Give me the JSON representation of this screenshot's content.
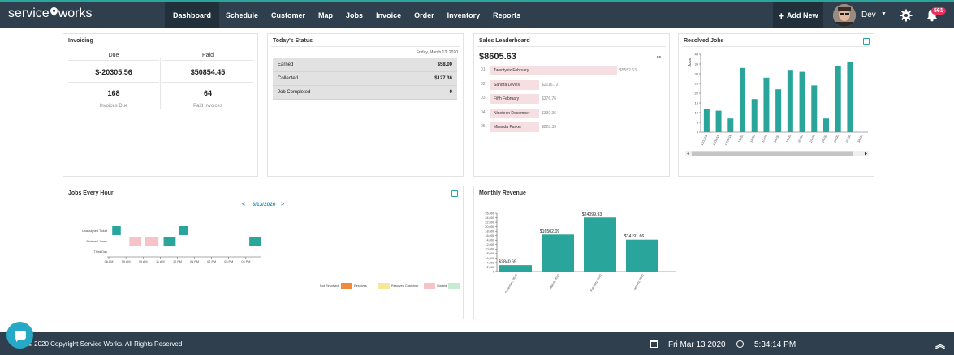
{
  "brand": {
    "name_left": "service",
    "name_right": "works"
  },
  "nav": {
    "items": [
      {
        "label": "Dashboard",
        "active": true
      },
      {
        "label": "Schedule"
      },
      {
        "label": "Customer"
      },
      {
        "label": "Map"
      },
      {
        "label": "Jobs"
      },
      {
        "label": "Invoice"
      },
      {
        "label": "Order"
      },
      {
        "label": "Inventory"
      },
      {
        "label": "Reports"
      }
    ],
    "add_new": "Add New",
    "user": "Dev",
    "notification_count": "561"
  },
  "invoicing": {
    "title": "Invoicing",
    "due_label": "Due",
    "paid_label": "Paid",
    "due_amount": "$-20305.56",
    "paid_amount": "$50854.45",
    "due_count": "168",
    "paid_count": "64",
    "due_caption": "Invoices Due",
    "paid_caption": "Paid Invoices"
  },
  "todays_status": {
    "title": "Today's Status",
    "date": "Friday, March 13, 2020",
    "rows": [
      {
        "label": "Earned",
        "value": "$58.00"
      },
      {
        "label": "Collected",
        "value": "$127.36"
      },
      {
        "label": "Job Completed",
        "value": "9"
      }
    ]
  },
  "leaderboard": {
    "title": "Sales Leaderboard",
    "total": "$8605.63",
    "dash": "--",
    "entries": [
      {
        "rank": "01.",
        "name": "Twentysix February",
        "value": "$5552.53",
        "amount": 5552.53
      },
      {
        "rank": "02.",
        "name": "Sandra Levins",
        "value": "$2116.72",
        "amount": 2116.72
      },
      {
        "rank": "03.",
        "name": "Fifth February",
        "value": "$376.76",
        "amount": 376.76
      },
      {
        "rank": "04.",
        "name": "Nineteen December",
        "value": "$330.36",
        "amount": 330.36
      },
      {
        "rank": "05.",
        "name": "Miranda Parker",
        "value": "$228.33",
        "amount": 228.33
      }
    ]
  },
  "chart_data": [
    {
      "id": "resolved_jobs",
      "type": "bar",
      "title": "Resolved Jobs",
      "ylabel": "Jobs",
      "ylim": [
        0,
        40
      ],
      "yticks": [
        0,
        5,
        10,
        15,
        20,
        25,
        30,
        35,
        40
      ],
      "categories": [
        "12/17/19",
        "12/18/19",
        "12/26/19",
        "1/2/20",
        "1/6/20",
        "1/7/20",
        "1/8/20",
        "1/9/20",
        "2/3/20",
        "2/4/20",
        "2/5/20",
        "2/6/20",
        "2/7/20",
        "3/5/20"
      ],
      "values": [
        12,
        11,
        7,
        33,
        17,
        28,
        22,
        32,
        31,
        24,
        7,
        34,
        36,
        0
      ],
      "color": "#2aa59c",
      "grid": false,
      "scrollbar": true
    },
    {
      "id": "jobs_every_hour",
      "type": "timeline",
      "title": "Jobs Every Hour",
      "date": "3/13/2020",
      "rows": [
        "Unassigned Ticket",
        "Finished Jones",
        "Third Day"
      ],
      "x_ticks": [
        "08 AM",
        "09 AM",
        "10 AM",
        "11 AM",
        "12 PM",
        "01 PM",
        "02 PM",
        "03 PM",
        "04 PM"
      ],
      "x_range_hours": [
        8,
        17
      ],
      "blocks": [
        {
          "row": 0,
          "start": 8.2,
          "end": 8.7,
          "status": "Finished Jones"
        },
        {
          "row": 0,
          "start": 12.1,
          "end": 12.6,
          "status": "Finished Jones"
        },
        {
          "row": 1,
          "start": 9.2,
          "end": 9.9,
          "status": "Resolved Customer"
        },
        {
          "row": 1,
          "start": 10.1,
          "end": 10.9,
          "status": "Resolved Customer"
        },
        {
          "row": 1,
          "start": 11.2,
          "end": 11.9,
          "status": "Finished Jones"
        },
        {
          "row": 1,
          "start": 16.2,
          "end": 16.9,
          "status": "Finished Jones"
        }
      ],
      "legend": [
        {
          "label": "Not Resolved",
          "color": "#f28a3c"
        },
        {
          "label": "Resolves",
          "color": "#f8e79a"
        },
        {
          "label": "Resolved Customer",
          "color": "#f6c3c8"
        },
        {
          "label": "Started",
          "color": "#c6ecd4"
        }
      ],
      "block_color_default": "#2aa59c"
    },
    {
      "id": "monthly_revenue",
      "type": "bar",
      "title": "Monthly Revenue",
      "ylim": [
        0,
        26000
      ],
      "yticks": [
        0,
        2000,
        4000,
        6000,
        8000,
        10000,
        12000,
        14000,
        16000,
        18000,
        20000,
        22000,
        24000,
        26000
      ],
      "categories": [
        "December, 2019",
        "March, 2020",
        "February, 2020",
        "January, 2020"
      ],
      "values": [
        2840.69,
        16502.09,
        24099.93,
        14191.66
      ],
      "data_labels": [
        "$2840.69",
        "$16502.09",
        "$24099.93",
        "$14191.66"
      ],
      "color": "#2aa59c",
      "grid": false
    }
  ],
  "footer": {
    "copyright": "© 2020 Copyright Service Works. All Rights Reserved.",
    "date": "Fri Mar 13 2020",
    "time": "5:34:14 PM"
  }
}
